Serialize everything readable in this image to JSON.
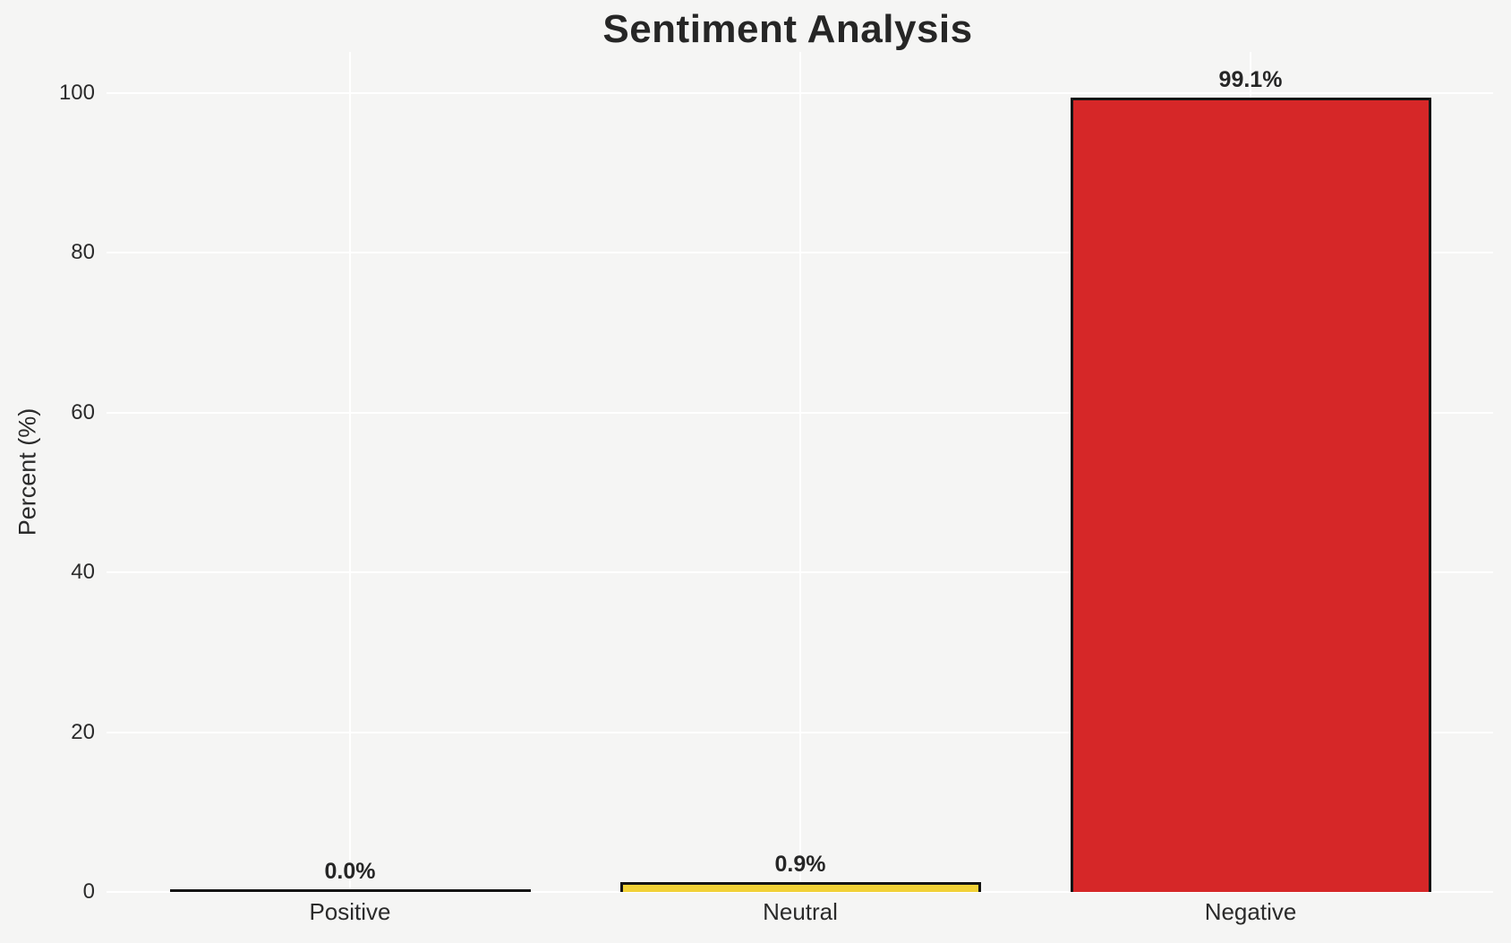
{
  "chart_data": {
    "type": "bar",
    "title": "Sentiment Analysis",
    "xlabel": "",
    "ylabel": "Percent (%)",
    "categories": [
      "Positive",
      "Neutral",
      "Negative"
    ],
    "values": [
      0.0,
      0.9,
      99.1
    ],
    "value_labels": [
      "0.0%",
      "0.9%",
      "99.1%"
    ],
    "bar_colors": [
      null,
      "#f1d137",
      "#d62728"
    ],
    "bar_edge_color": "#141414",
    "yticks": [
      0,
      20,
      40,
      60,
      80,
      100
    ],
    "ylim": [
      0,
      105
    ],
    "grid": true,
    "grid_color": "#ffffff",
    "background_color": "#f5f5f4",
    "text_color": "#2b2b2b",
    "legend_position": "none"
  }
}
